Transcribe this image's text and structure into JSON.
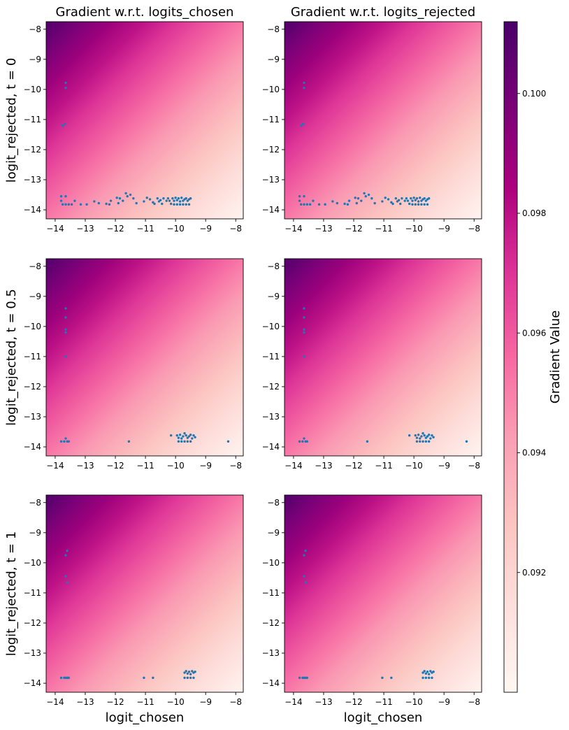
{
  "chart_data": [
    {
      "type": "heatmap",
      "title": "Gradient w.r.t. logits_chosen",
      "xlabel": "",
      "ylabel": "logit_rejected, t = 0",
      "xlim": [
        -14.3,
        -7.75
      ],
      "ylim": [
        -14.3,
        -7.75
      ],
      "xticks": [
        "−14",
        "−13",
        "−12",
        "−11",
        "−10",
        "−9",
        "−8"
      ],
      "yticks": [
        "−8",
        "−9",
        "−10",
        "−11",
        "−12",
        "−13",
        "−14"
      ],
      "heatmap": {
        "colormap": "RdPu",
        "vmin": 0.09,
        "vmax": 0.1012,
        "value_top_left": 0.101,
        "value_bottom_right": 0.0902
      },
      "scatter": [
        [
          -13.65,
          -9.78
        ],
        [
          -13.65,
          -9.95
        ],
        [
          -13.75,
          -11.2
        ],
        [
          -13.68,
          -11.15
        ],
        [
          -13.8,
          -13.55
        ],
        [
          -13.65,
          -13.55
        ],
        [
          -13.8,
          -13.7
        ],
        [
          -13.75,
          -13.82
        ],
        [
          -13.65,
          -13.82
        ],
        [
          -13.55,
          -13.82
        ],
        [
          -13.45,
          -13.82
        ],
        [
          -13.35,
          -13.7
        ],
        [
          -13.15,
          -13.82
        ],
        [
          -12.95,
          -13.82
        ],
        [
          -12.7,
          -13.72
        ],
        [
          -12.55,
          -13.78
        ],
        [
          -12.3,
          -13.8
        ],
        [
          -12.2,
          -13.82
        ],
        [
          -12.15,
          -13.7
        ],
        [
          -11.95,
          -13.6
        ],
        [
          -11.9,
          -13.78
        ],
        [
          -11.85,
          -13.62
        ],
        [
          -11.75,
          -13.7
        ],
        [
          -11.65,
          -13.45
        ],
        [
          -11.6,
          -13.55
        ],
        [
          -11.5,
          -13.5
        ],
        [
          -11.4,
          -13.62
        ],
        [
          -11.3,
          -13.78
        ],
        [
          -11.05,
          -13.72
        ],
        [
          -10.95,
          -13.6
        ],
        [
          -10.85,
          -13.65
        ],
        [
          -10.75,
          -13.75
        ],
        [
          -10.7,
          -13.8
        ],
        [
          -10.6,
          -13.62
        ],
        [
          -10.55,
          -13.72
        ],
        [
          -10.5,
          -13.68
        ],
        [
          -10.45,
          -13.8
        ],
        [
          -10.4,
          -13.62
        ],
        [
          -10.3,
          -13.7
        ],
        [
          -10.25,
          -13.62
        ],
        [
          -10.2,
          -13.7
        ],
        [
          -10.15,
          -13.8
        ],
        [
          -10.1,
          -13.62
        ],
        [
          -10.05,
          -13.7
        ],
        [
          -10.0,
          -13.6
        ],
        [
          -9.95,
          -13.68
        ],
        [
          -9.9,
          -13.62
        ],
        [
          -9.85,
          -13.72
        ],
        [
          -9.8,
          -13.6
        ],
        [
          -9.75,
          -13.7
        ],
        [
          -9.7,
          -13.65
        ],
        [
          -9.65,
          -13.62
        ],
        [
          -9.6,
          -13.7
        ],
        [
          -9.55,
          -13.65
        ],
        [
          -9.5,
          -13.62
        ],
        [
          -10.05,
          -13.82
        ],
        [
          -9.95,
          -13.82
        ],
        [
          -9.85,
          -13.82
        ],
        [
          -9.75,
          -13.82
        ],
        [
          -9.65,
          -13.82
        ],
        [
          -9.55,
          -13.82
        ]
      ]
    },
    {
      "type": "heatmap",
      "title": "Gradient w.r.t. logits_rejected",
      "xlabel": "",
      "ylabel": "",
      "xlim": [
        -14.3,
        -7.75
      ],
      "ylim": [
        -14.3,
        -7.75
      ],
      "xticks": [
        "−14",
        "−13",
        "−12",
        "−11",
        "−10",
        "−9",
        "−8"
      ],
      "yticks": [
        "−8",
        "−9",
        "−10",
        "−11",
        "−12",
        "−13",
        "−14"
      ],
      "heatmap": {
        "colormap": "RdPu",
        "vmin": 0.09,
        "vmax": 0.1012,
        "value_top_left": 0.101,
        "value_bottom_right": 0.0902
      },
      "scatter": [
        [
          -13.65,
          -9.78
        ],
        [
          -13.65,
          -9.95
        ],
        [
          -13.75,
          -11.2
        ],
        [
          -13.68,
          -11.15
        ],
        [
          -13.8,
          -13.55
        ],
        [
          -13.65,
          -13.55
        ],
        [
          -13.8,
          -13.7
        ],
        [
          -13.75,
          -13.82
        ],
        [
          -13.65,
          -13.82
        ],
        [
          -13.55,
          -13.82
        ],
        [
          -13.45,
          -13.82
        ],
        [
          -13.35,
          -13.7
        ],
        [
          -13.15,
          -13.82
        ],
        [
          -12.95,
          -13.82
        ],
        [
          -12.7,
          -13.72
        ],
        [
          -12.55,
          -13.78
        ],
        [
          -12.3,
          -13.8
        ],
        [
          -12.2,
          -13.82
        ],
        [
          -12.15,
          -13.7
        ],
        [
          -11.95,
          -13.6
        ],
        [
          -11.9,
          -13.78
        ],
        [
          -11.85,
          -13.62
        ],
        [
          -11.75,
          -13.7
        ],
        [
          -11.65,
          -13.45
        ],
        [
          -11.6,
          -13.55
        ],
        [
          -11.5,
          -13.5
        ],
        [
          -11.4,
          -13.62
        ],
        [
          -11.3,
          -13.78
        ],
        [
          -11.05,
          -13.72
        ],
        [
          -10.95,
          -13.6
        ],
        [
          -10.85,
          -13.65
        ],
        [
          -10.75,
          -13.75
        ],
        [
          -10.7,
          -13.8
        ],
        [
          -10.6,
          -13.62
        ],
        [
          -10.55,
          -13.72
        ],
        [
          -10.5,
          -13.68
        ],
        [
          -10.45,
          -13.8
        ],
        [
          -10.4,
          -13.62
        ],
        [
          -10.3,
          -13.7
        ],
        [
          -10.25,
          -13.62
        ],
        [
          -10.2,
          -13.7
        ],
        [
          -10.15,
          -13.8
        ],
        [
          -10.1,
          -13.62
        ],
        [
          -10.05,
          -13.7
        ],
        [
          -10.0,
          -13.6
        ],
        [
          -9.95,
          -13.68
        ],
        [
          -9.9,
          -13.62
        ],
        [
          -9.85,
          -13.72
        ],
        [
          -9.8,
          -13.6
        ],
        [
          -9.75,
          -13.7
        ],
        [
          -9.7,
          -13.65
        ],
        [
          -9.65,
          -13.62
        ],
        [
          -9.6,
          -13.7
        ],
        [
          -9.55,
          -13.65
        ],
        [
          -9.5,
          -13.62
        ],
        [
          -10.05,
          -13.82
        ],
        [
          -9.95,
          -13.82
        ],
        [
          -9.85,
          -13.82
        ],
        [
          -9.75,
          -13.82
        ],
        [
          -9.65,
          -13.82
        ],
        [
          -9.55,
          -13.82
        ]
      ]
    },
    {
      "type": "heatmap",
      "title": "",
      "xlabel": "",
      "ylabel": "logit_rejected, t = 0.5",
      "xlim": [
        -14.3,
        -7.75
      ],
      "ylim": [
        -14.3,
        -7.75
      ],
      "xticks": [
        "−14",
        "−13",
        "−12",
        "−11",
        "−10",
        "−9",
        "−8"
      ],
      "yticks": [
        "−8",
        "−9",
        "−10",
        "−11",
        "−12",
        "−13",
        "−14"
      ],
      "heatmap": {
        "colormap": "RdPu",
        "vmin": 0.09,
        "vmax": 0.1012,
        "value_top_left": 0.101,
        "value_bottom_right": 0.0902
      },
      "scatter": [
        [
          -13.65,
          -9.4
        ],
        [
          -13.65,
          -9.7
        ],
        [
          -13.65,
          -10.1
        ],
        [
          -13.65,
          -10.2
        ],
        [
          -13.65,
          -11.0
        ],
        [
          -13.8,
          -13.82
        ],
        [
          -13.7,
          -13.82
        ],
        [
          -13.65,
          -13.72
        ],
        [
          -13.6,
          -13.82
        ],
        [
          -13.55,
          -13.82
        ],
        [
          -11.55,
          -13.82
        ],
        [
          -10.15,
          -13.62
        ],
        [
          -8.25,
          -13.82
        ],
        [
          -9.95,
          -13.62
        ],
        [
          -9.9,
          -13.7
        ],
        [
          -9.85,
          -13.6
        ],
        [
          -9.8,
          -13.72
        ],
        [
          -9.75,
          -13.65
        ],
        [
          -9.7,
          -13.55
        ],
        [
          -9.65,
          -13.62
        ],
        [
          -9.6,
          -13.7
        ],
        [
          -9.55,
          -13.65
        ],
        [
          -9.5,
          -13.6
        ],
        [
          -9.45,
          -13.72
        ],
        [
          -9.4,
          -13.62
        ],
        [
          -9.35,
          -13.68
        ],
        [
          -9.9,
          -13.82
        ],
        [
          -9.8,
          -13.82
        ],
        [
          -9.7,
          -13.82
        ],
        [
          -9.6,
          -13.82
        ],
        [
          -9.5,
          -13.82
        ]
      ]
    },
    {
      "type": "heatmap",
      "title": "",
      "xlabel": "",
      "ylabel": "",
      "xlim": [
        -14.3,
        -7.75
      ],
      "ylim": [
        -14.3,
        -7.75
      ],
      "xticks": [
        "−14",
        "−13",
        "−12",
        "−11",
        "−10",
        "−9",
        "−8"
      ],
      "yticks": [
        "−8",
        "−9",
        "−10",
        "−11",
        "−12",
        "−13",
        "−14"
      ],
      "heatmap": {
        "colormap": "RdPu",
        "vmin": 0.09,
        "vmax": 0.1012,
        "value_top_left": 0.101,
        "value_bottom_right": 0.0902
      },
      "scatter": [
        [
          -13.65,
          -9.4
        ],
        [
          -13.65,
          -9.7
        ],
        [
          -13.65,
          -10.1
        ],
        [
          -13.65,
          -10.2
        ],
        [
          -13.65,
          -11.0
        ],
        [
          -13.8,
          -13.82
        ],
        [
          -13.7,
          -13.82
        ],
        [
          -13.65,
          -13.72
        ],
        [
          -13.6,
          -13.82
        ],
        [
          -13.55,
          -13.82
        ],
        [
          -11.55,
          -13.82
        ],
        [
          -10.15,
          -13.62
        ],
        [
          -8.25,
          -13.82
        ],
        [
          -9.95,
          -13.62
        ],
        [
          -9.9,
          -13.7
        ],
        [
          -9.85,
          -13.6
        ],
        [
          -9.8,
          -13.72
        ],
        [
          -9.75,
          -13.65
        ],
        [
          -9.7,
          -13.55
        ],
        [
          -9.65,
          -13.62
        ],
        [
          -9.6,
          -13.7
        ],
        [
          -9.55,
          -13.65
        ],
        [
          -9.5,
          -13.6
        ],
        [
          -9.45,
          -13.72
        ],
        [
          -9.4,
          -13.62
        ],
        [
          -9.35,
          -13.68
        ],
        [
          -9.9,
          -13.82
        ],
        [
          -9.8,
          -13.82
        ],
        [
          -9.7,
          -13.82
        ],
        [
          -9.6,
          -13.82
        ],
        [
          -9.5,
          -13.82
        ]
      ]
    },
    {
      "type": "heatmap",
      "title": "",
      "xlabel": "logit_chosen",
      "ylabel": "logit_rejected, t = 1",
      "xlim": [
        -14.3,
        -7.75
      ],
      "ylim": [
        -14.3,
        -7.75
      ],
      "xticks": [
        "−14",
        "−13",
        "−12",
        "−11",
        "−10",
        "−9",
        "−8"
      ],
      "yticks": [
        "−8",
        "−9",
        "−10",
        "−11",
        "−12",
        "−13",
        "−14"
      ],
      "heatmap": {
        "colormap": "RdPu",
        "vmin": 0.09,
        "vmax": 0.1012,
        "value_top_left": 0.101,
        "value_bottom_right": 0.0902
      },
      "scatter": [
        [
          -13.6,
          -9.6
        ],
        [
          -13.65,
          -9.75
        ],
        [
          -13.65,
          -10.45
        ],
        [
          -13.6,
          -10.65
        ],
        [
          -13.8,
          -13.82
        ],
        [
          -13.7,
          -13.82
        ],
        [
          -13.65,
          -13.82
        ],
        [
          -13.6,
          -13.82
        ],
        [
          -13.55,
          -13.82
        ],
        [
          -11.05,
          -13.82
        ],
        [
          -10.75,
          -13.82
        ],
        [
          -9.7,
          -13.65
        ],
        [
          -9.65,
          -13.6
        ],
        [
          -9.6,
          -13.68
        ],
        [
          -9.55,
          -13.62
        ],
        [
          -9.5,
          -13.7
        ],
        [
          -9.45,
          -13.6
        ],
        [
          -9.4,
          -13.65
        ],
        [
          -9.35,
          -13.62
        ],
        [
          -9.7,
          -13.82
        ],
        [
          -9.6,
          -13.82
        ],
        [
          -9.5,
          -13.82
        ],
        [
          -9.4,
          -13.82
        ]
      ]
    },
    {
      "type": "heatmap",
      "title": "",
      "xlabel": "logit_chosen",
      "ylabel": "",
      "xlim": [
        -14.3,
        -7.75
      ],
      "ylim": [
        -14.3,
        -7.75
      ],
      "xticks": [
        "−14",
        "−13",
        "−12",
        "−11",
        "−10",
        "−9",
        "−8"
      ],
      "yticks": [
        "−8",
        "−9",
        "−10",
        "−11",
        "−12",
        "−13",
        "−14"
      ],
      "heatmap": {
        "colormap": "RdPu",
        "vmin": 0.09,
        "vmax": 0.1012,
        "value_top_left": 0.101,
        "value_bottom_right": 0.0902
      },
      "scatter": [
        [
          -13.6,
          -9.6
        ],
        [
          -13.65,
          -9.75
        ],
        [
          -13.65,
          -10.45
        ],
        [
          -13.6,
          -10.65
        ],
        [
          -13.8,
          -13.82
        ],
        [
          -13.7,
          -13.82
        ],
        [
          -13.65,
          -13.82
        ],
        [
          -13.6,
          -13.82
        ],
        [
          -13.55,
          -13.82
        ],
        [
          -11.05,
          -13.82
        ],
        [
          -10.75,
          -13.82
        ],
        [
          -9.7,
          -13.65
        ],
        [
          -9.65,
          -13.6
        ],
        [
          -9.6,
          -13.68
        ],
        [
          -9.55,
          -13.62
        ],
        [
          -9.5,
          -13.7
        ],
        [
          -9.45,
          -13.6
        ],
        [
          -9.4,
          -13.65
        ],
        [
          -9.35,
          -13.62
        ],
        [
          -9.7,
          -13.82
        ],
        [
          -9.6,
          -13.82
        ],
        [
          -9.5,
          -13.82
        ],
        [
          -9.4,
          -13.82
        ]
      ]
    }
  ],
  "colorbar": {
    "label": "Gradient Value",
    "vmin": 0.09,
    "vmax": 0.1012,
    "ticks": [
      0.092,
      0.094,
      0.096,
      0.098,
      0.1
    ],
    "tick_labels": [
      "0.092",
      "0.094",
      "0.096",
      "0.098",
      "0.100"
    ]
  },
  "colors": {
    "colormap_stops": [
      "#fff7f3",
      "#fde0dd",
      "#fcc5c0",
      "#fa9fb5",
      "#f768a1",
      "#dd3497",
      "#ae017e",
      "#7a0177",
      "#49006a"
    ],
    "scatter": "#1f77b4"
  }
}
